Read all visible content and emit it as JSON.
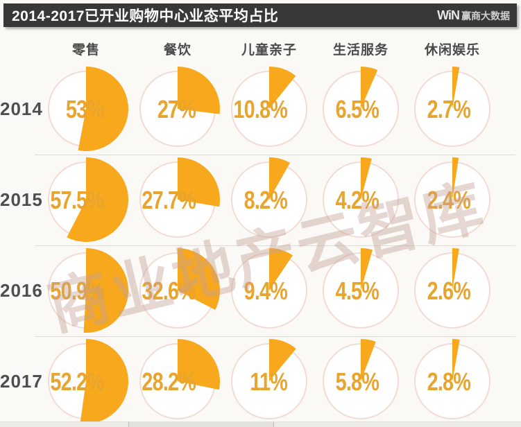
{
  "header": {
    "title": "2014-2017已开业购物中心业态平均占比",
    "logo_win": "WiN",
    "logo_text": "赢商大数据"
  },
  "watermark": "商业地产云智库",
  "colors": {
    "slice": "#F8A81C",
    "label": "#E7A42F",
    "ring": "#F2DBD4",
    "header_bg": "#383838",
    "background": "#FAF9F5"
  },
  "chart_data": {
    "type": "pie",
    "title": "2014-2017已开业购物中心业态平均占比",
    "categories": [
      "零售",
      "餐饮",
      "儿童亲子",
      "生活服务",
      "休闲娱乐"
    ],
    "unit": "%",
    "layout": "grid of pie charts, rows = years, columns = categories, slices start at 12 o'clock sweeping clockwise",
    "series": [
      {
        "name": "2014",
        "values": [
          53,
          27,
          10.8,
          6.5,
          2.7
        ],
        "labels": [
          "53%",
          "27%",
          "10.8%",
          "6.5%",
          "2.7%"
        ]
      },
      {
        "name": "2015",
        "values": [
          57.5,
          27.7,
          8.2,
          4.2,
          2.4
        ],
        "labels": [
          "57.5%",
          "27.7%",
          "8.2%",
          "4.2%",
          "2.4%"
        ]
      },
      {
        "name": "2016",
        "values": [
          50.9,
          32.6,
          9.4,
          4.5,
          2.6
        ],
        "labels": [
          "50.9%",
          "32.6%",
          "9.4%",
          "4.5%",
          "2.6%"
        ]
      },
      {
        "name": "2017",
        "values": [
          52.2,
          28.2,
          11,
          5.8,
          2.8
        ],
        "labels": [
          "52.2%",
          "28.2%",
          "11%",
          "5.8%",
          "2.8%"
        ]
      }
    ]
  }
}
